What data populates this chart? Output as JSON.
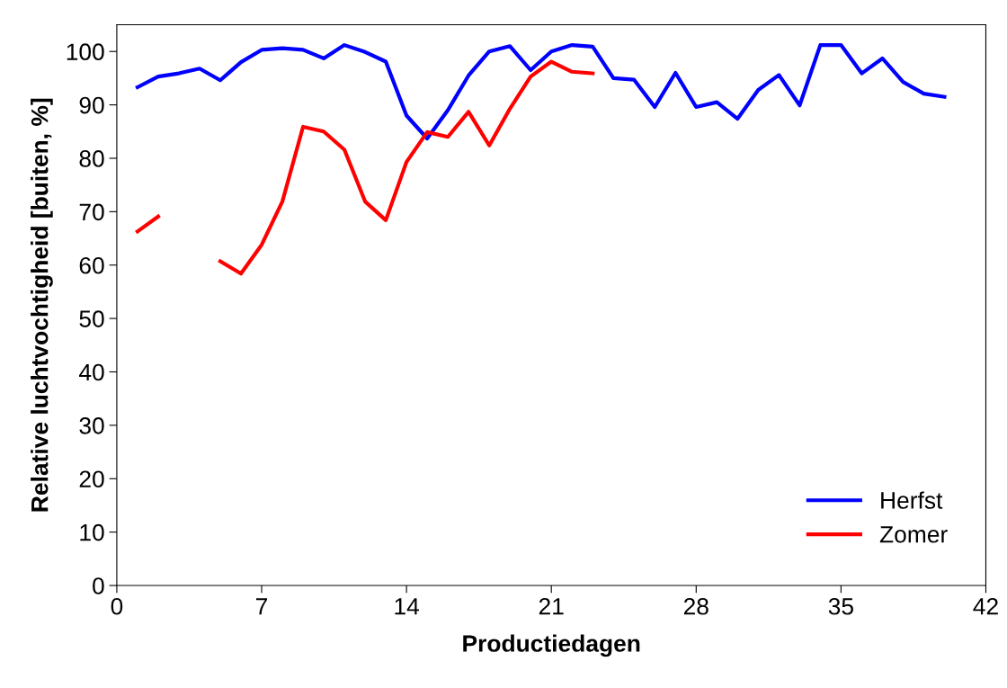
{
  "chart_data": {
    "type": "line",
    "xlabel": "Productiedagen",
    "ylabel": "Relative luchtvochtigheid [buiten, %]",
    "xlim": [
      0,
      42
    ],
    "xticks": [
      0,
      7,
      14,
      21,
      28,
      35,
      42
    ],
    "ylim": [
      0,
      105
    ],
    "yticks": [
      0,
      10,
      20,
      30,
      40,
      50,
      60,
      70,
      80,
      90,
      100
    ],
    "grid": false,
    "legend": "bottom right",
    "marker": "none",
    "line_style": "solid",
    "series": [
      {
        "name": "Herfst",
        "color": "#0000ff",
        "x": [
          1,
          2,
          3,
          4,
          5,
          6,
          7,
          8,
          9,
          10,
          11,
          12,
          13,
          14,
          15,
          16,
          17,
          18,
          19,
          20,
          21,
          22,
          23,
          24,
          25,
          26,
          27,
          28,
          29,
          30,
          31,
          32,
          33,
          34,
          35,
          36,
          37,
          38,
          39,
          40
        ],
        "values": [
          93.3,
          95.3,
          95.9,
          96.8,
          94.6,
          98.0,
          100.3,
          100.6,
          100.3,
          98.7,
          101.2,
          99.9,
          98.1,
          88.0,
          83.7,
          89.0,
          95.5,
          100.0,
          101.0,
          96.5,
          100.0,
          101.2,
          100.9,
          95.0,
          94.7,
          89.6,
          96.0,
          89.6,
          90.5,
          87.4,
          92.8,
          95.6,
          89.9,
          101.2,
          101.2,
          95.9,
          98.7,
          94.3,
          92.1,
          91.5
        ]
      },
      {
        "name": "Zomer",
        "color": "#ff0000",
        "x": [
          1,
          2,
          3,
          4,
          5,
          6,
          7,
          8,
          9,
          10,
          11,
          12,
          13,
          14,
          15,
          16,
          17,
          18,
          19,
          20,
          21,
          22,
          23
        ],
        "values": [
          66.3,
          69.1,
          null,
          null,
          60.7,
          58.4,
          63.8,
          71.9,
          85.9,
          85.0,
          81.6,
          71.9,
          68.4,
          79.3,
          84.9,
          84.0,
          88.7,
          82.4,
          89.3,
          95.3,
          98.1,
          96.2,
          95.9
        ]
      }
    ]
  }
}
